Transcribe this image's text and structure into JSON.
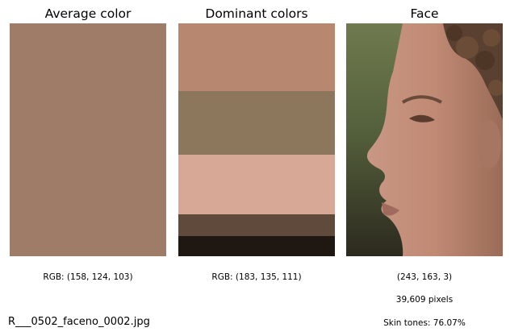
{
  "panels": {
    "average": {
      "title": "Average color",
      "color": "#9e7c67",
      "rgb_label": "RGB: (158, 124, 103)"
    },
    "dominant": {
      "title": "Dominant colors",
      "rgb_label": "RGB: (183, 135, 111)",
      "swatches": [
        {
          "color": "#b7876f",
          "fraction": 0.29
        },
        {
          "color": "#8c765c",
          "fraction": 0.275
        },
        {
          "color": "#d6a895",
          "fraction": 0.255
        },
        {
          "color": "#5f4a3c",
          "fraction": 0.095
        },
        {
          "color": "#1f1711",
          "fraction": 0.085
        }
      ]
    },
    "face": {
      "title": "Face",
      "color_label": "(243, 163, 3)",
      "pixels_label": "39,609 pixels",
      "skin_label": "Skin tones: 76.07%"
    }
  },
  "filename": "R___0502_faceno_0002.jpg"
}
